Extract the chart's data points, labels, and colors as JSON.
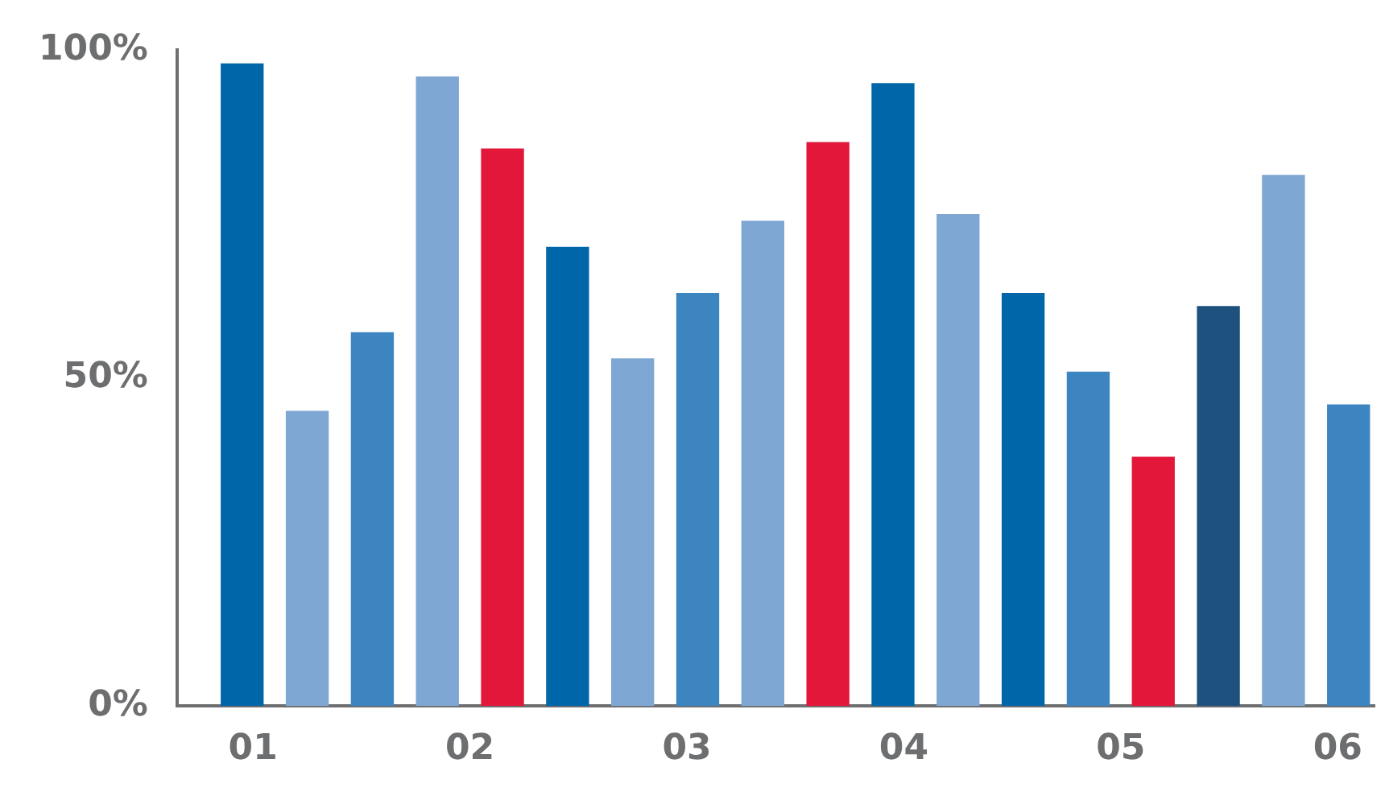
{
  "chart_data": {
    "type": "bar",
    "x": [
      0.95,
      1.25,
      1.55,
      1.85,
      2.15,
      2.45,
      2.75,
      3.05,
      3.35,
      3.65,
      3.95,
      4.25,
      4.55,
      4.85,
      5.15,
      5.45,
      5.75,
      6.05
    ],
    "values": [
      98,
      45,
      57,
      96,
      85,
      70,
      53,
      63,
      74,
      86,
      95,
      75,
      63,
      51,
      38,
      61,
      81,
      46
    ],
    "colors": [
      "#0066aa",
      "#7fa7d3",
      "#3d85c0",
      "#7fa7d3",
      "#e3173a",
      "#0066aa",
      "#7fa7d3",
      "#3d85c0",
      "#7fa7d3",
      "#e3173a",
      "#0066aa",
      "#7fa7d3",
      "#0066aa",
      "#3d85c0",
      "#e3173a",
      "#1f517f",
      "#7fa7d3",
      "#3d85c0"
    ],
    "xlim": [
      0.65,
      6.17
    ],
    "xticks": [
      {
        "value": 1,
        "label": "01"
      },
      {
        "value": 2,
        "label": "02"
      },
      {
        "value": 3,
        "label": "03"
      },
      {
        "value": 4,
        "label": "04"
      },
      {
        "value": 5,
        "label": "05"
      },
      {
        "value": 6,
        "label": "06"
      }
    ],
    "ylim": [
      0,
      100
    ],
    "yticks": [
      {
        "value": 0,
        "label": "0%"
      },
      {
        "value": 50,
        "label": "50%"
      },
      {
        "value": 100,
        "label": "100%"
      }
    ],
    "grid": false,
    "legend": false
  }
}
